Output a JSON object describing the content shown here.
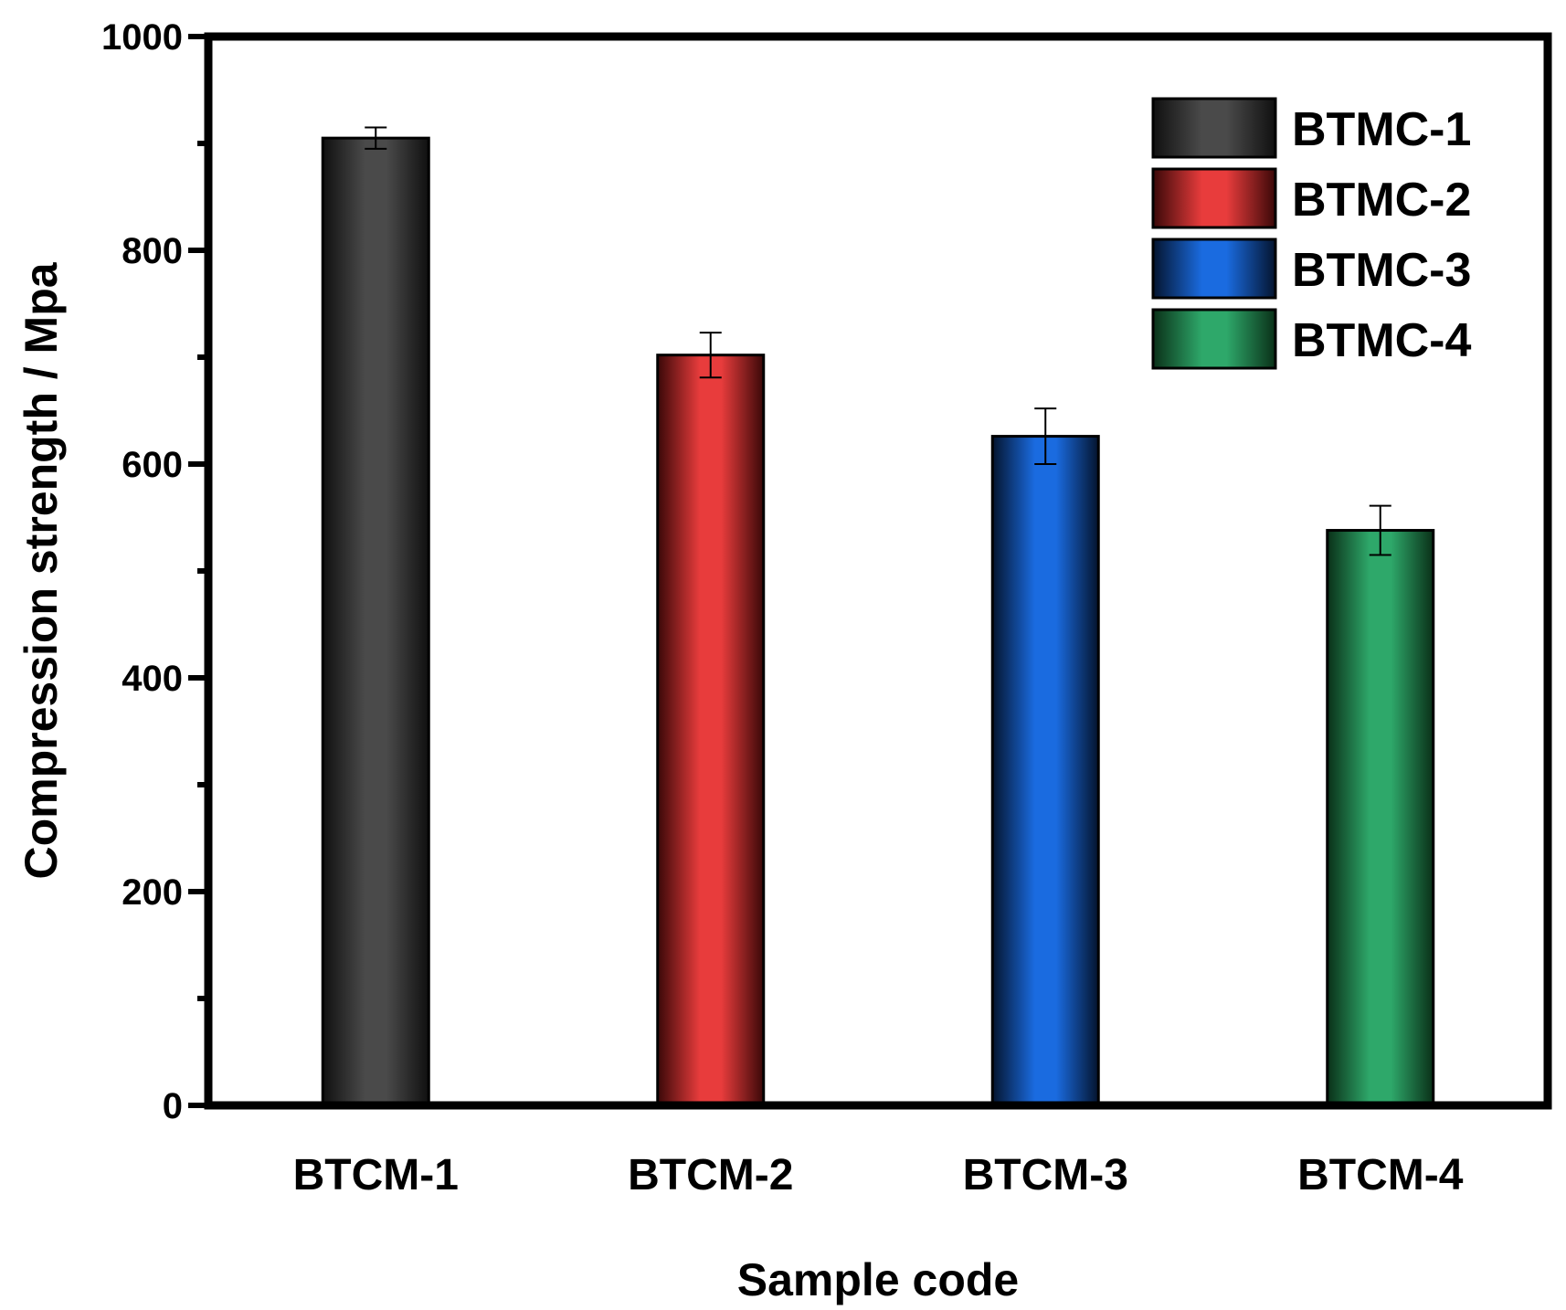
{
  "chart_data": {
    "type": "bar",
    "categories": [
      "BTCM-1",
      "BTCM-2",
      "BTCM-3",
      "BTCM-4"
    ],
    "values": [
      905,
      702,
      626,
      538
    ],
    "errors": [
      10,
      21,
      26,
      23
    ],
    "xlabel": "Sample code",
    "ylabel": "Compression strength / Mpa",
    "ylim": [
      0,
      1000
    ],
    "yticks": [
      0,
      200,
      400,
      600,
      800,
      1000
    ],
    "legend": {
      "placement": "top-right",
      "entries": [
        "BTMC-1",
        "BTMC-2",
        "BTMC-3",
        "BTMC-4"
      ]
    },
    "colors": [
      "#4a4a4a",
      "#e83c3c",
      "#1a6be0",
      "#2ea86a"
    ],
    "dark_colors": [
      "#101010",
      "#3a0808",
      "#04142e",
      "#0a3018"
    ]
  }
}
